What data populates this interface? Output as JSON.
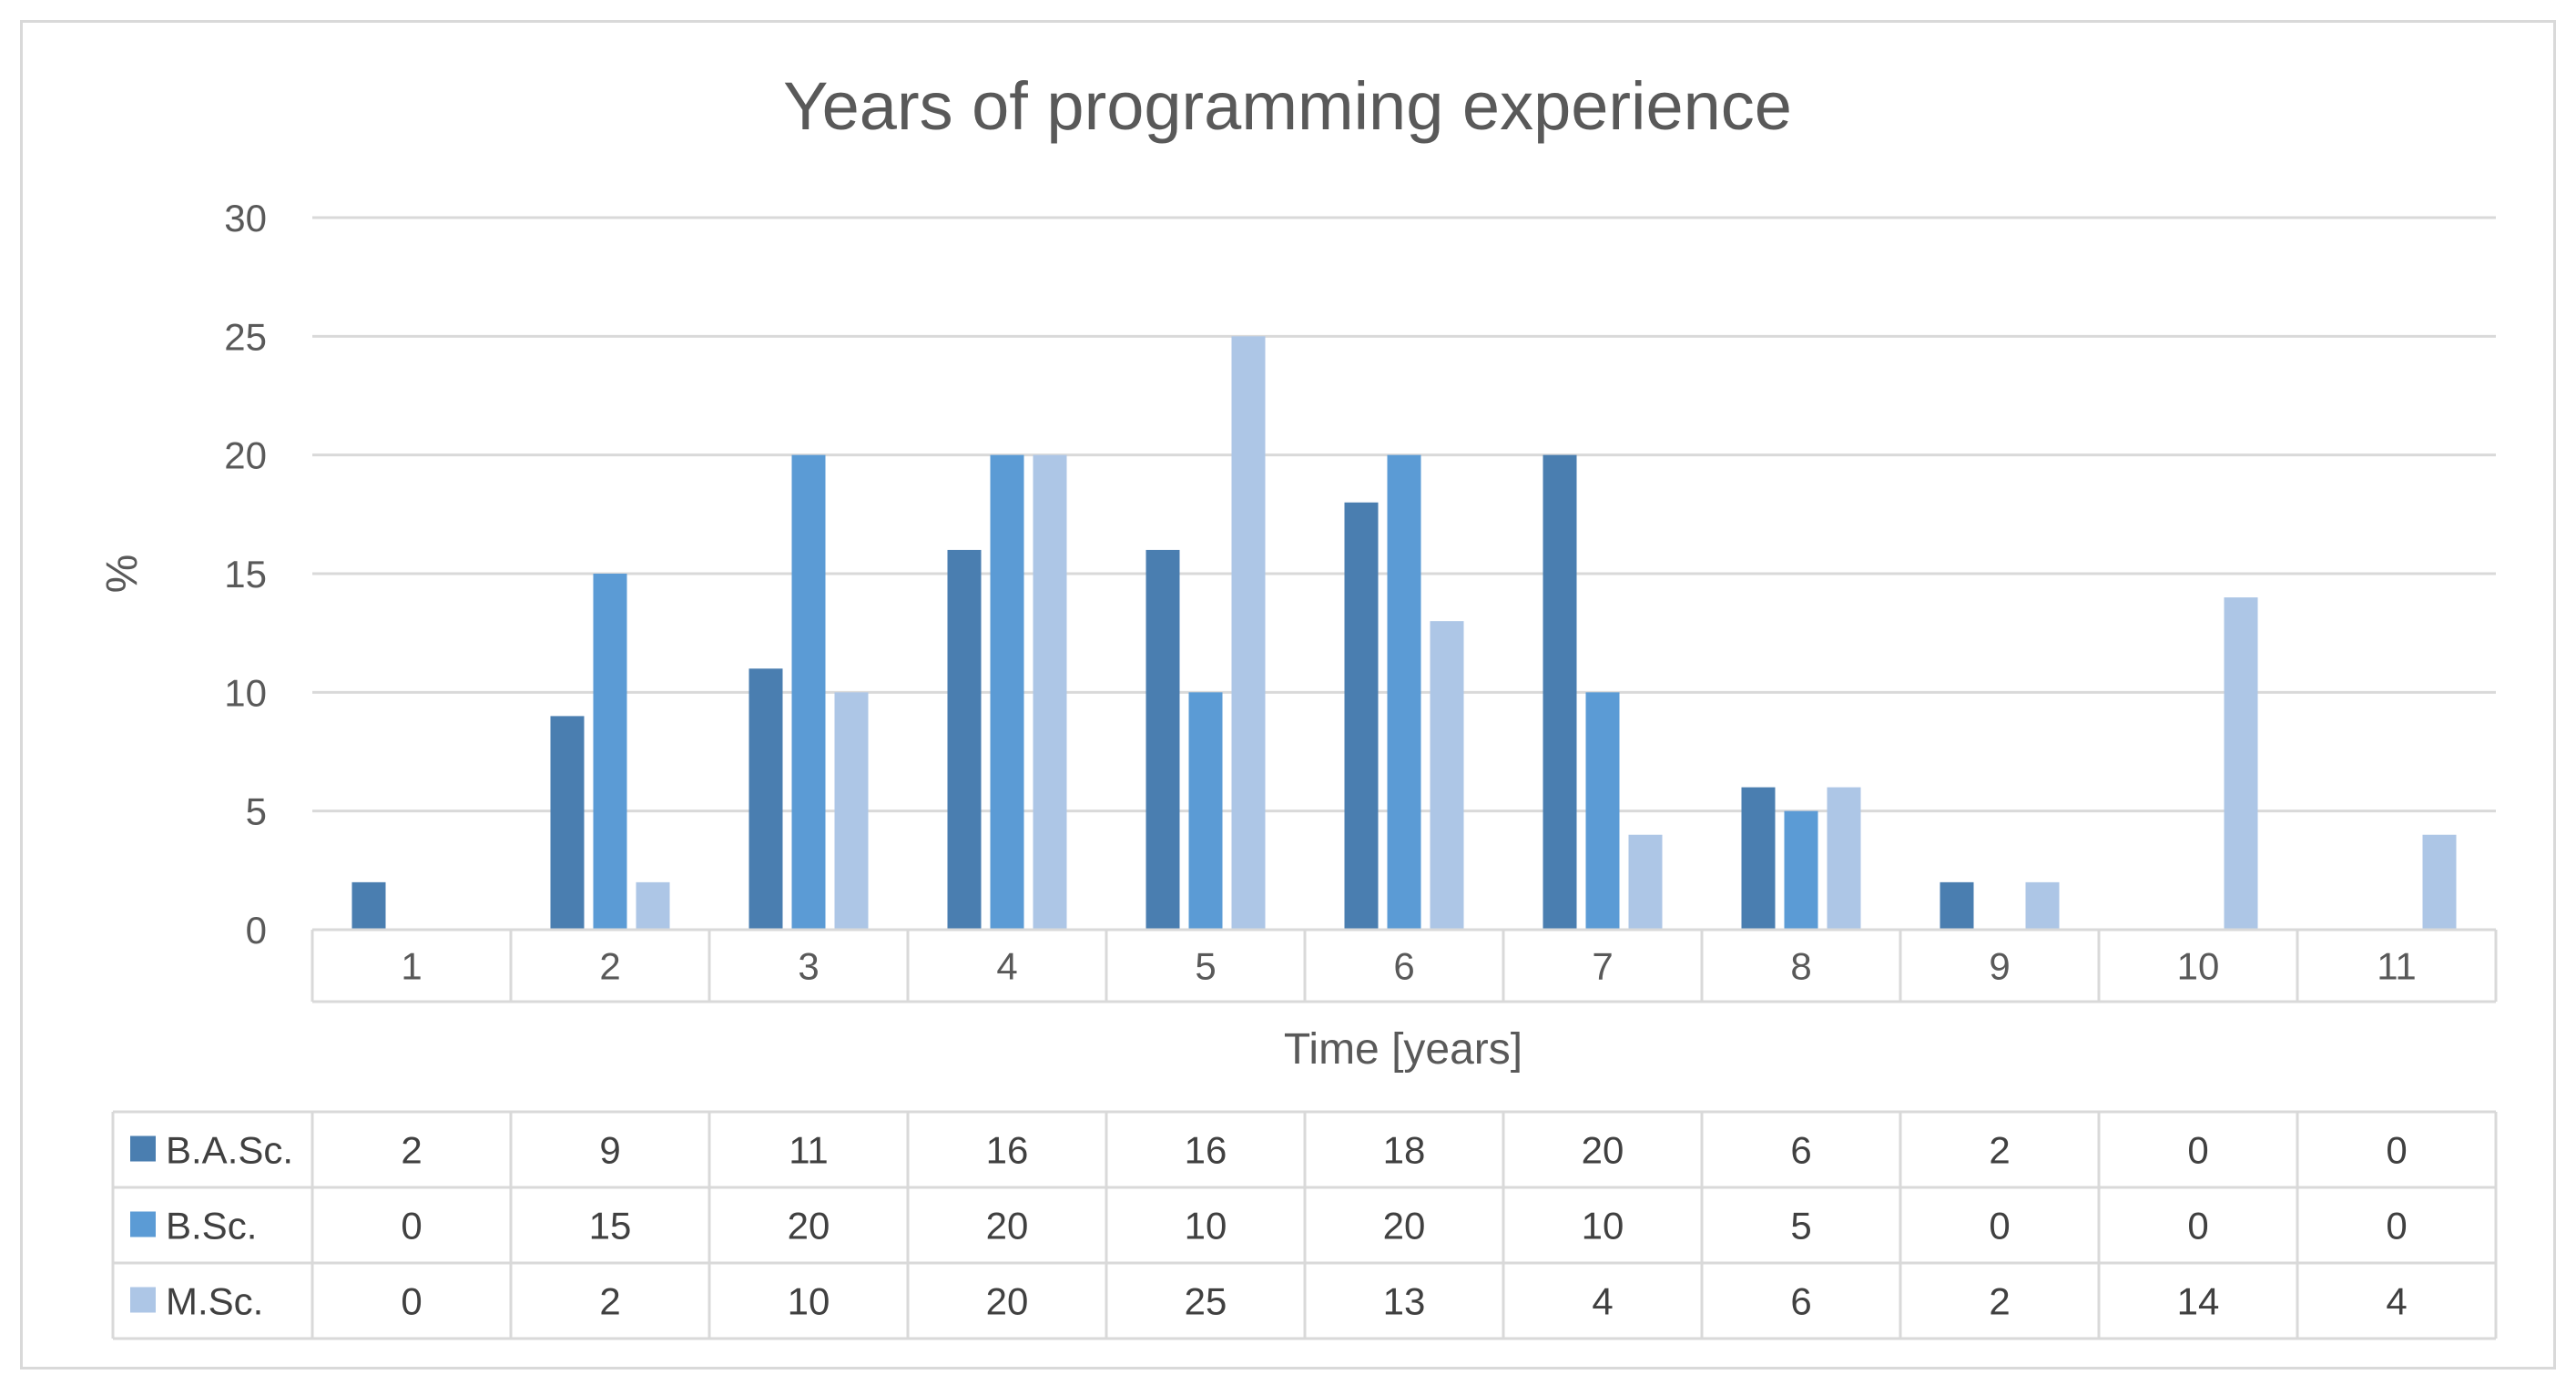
{
  "chart_data": {
    "type": "bar",
    "title": "Years of programming experience",
    "xlabel": "Time [years]",
    "ylabel": "%",
    "ylim": [
      0,
      30
    ],
    "yticks": [
      0,
      5,
      10,
      15,
      20,
      25,
      30
    ],
    "grid": true,
    "legend": "data-table",
    "categories": [
      "1",
      "2",
      "3",
      "4",
      "5",
      "6",
      "7",
      "8",
      "9",
      "10",
      "11"
    ],
    "series": [
      {
        "name": "B.A.Sc.",
        "color": "#4a7eb0",
        "values": [
          2,
          9,
          11,
          16,
          16,
          18,
          20,
          6,
          2,
          0,
          0
        ]
      },
      {
        "name": "B.Sc.",
        "color": "#5b9bd5",
        "values": [
          0,
          15,
          20,
          20,
          10,
          20,
          10,
          5,
          0,
          0,
          0
        ]
      },
      {
        "name": "M.Sc.",
        "color": "#adc6e6",
        "values": [
          0,
          2,
          10,
          20,
          25,
          13,
          4,
          6,
          2,
          14,
          4
        ]
      }
    ]
  }
}
